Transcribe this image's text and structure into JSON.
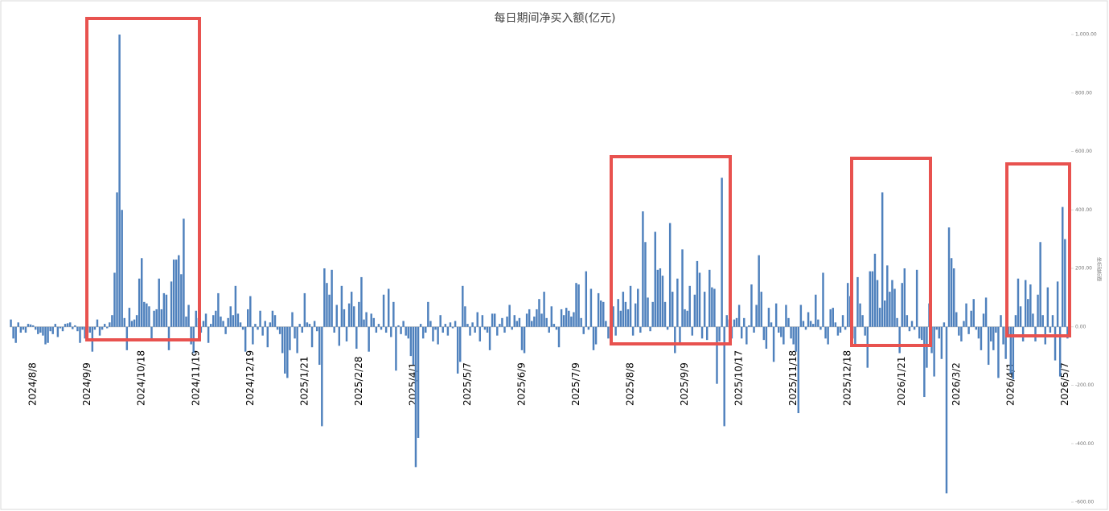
{
  "chart_data": {
    "type": "bar",
    "title": "每日期间净买入额(亿元)",
    "y_axis_label": "坐标轴标题",
    "color": "#4f81bd",
    "ylim": [
      -600,
      1000
    ],
    "yticks": [
      {
        "value": -600,
        "label": "-600.00"
      },
      {
        "value": -400,
        "label": "-400.00"
      },
      {
        "value": -200,
        "label": "-200.00"
      },
      {
        "value": 0,
        "label": "0.00"
      },
      {
        "value": 200,
        "label": "200.00"
      },
      {
        "value": 400,
        "label": "400.00"
      },
      {
        "value": 600,
        "label": "600.00"
      },
      {
        "value": 800,
        "label": "800.00"
      },
      {
        "value": 1000,
        "label": "1,000.00"
      }
    ],
    "categories": [
      null,
      null,
      null,
      null,
      null,
      null,
      null,
      null,
      null,
      "2024/8/8",
      null,
      null,
      null,
      null,
      null,
      null,
      null,
      null,
      null,
      null,
      null,
      null,
      null,
      null,
      null,
      null,
      null,
      null,
      null,
      null,
      null,
      "2024/9/9",
      null,
      null,
      null,
      null,
      null,
      null,
      null,
      null,
      null,
      null,
      null,
      null,
      null,
      null,
      null,
      null,
      null,
      null,
      null,
      null,
      null,
      "2024/10/18",
      null,
      null,
      null,
      null,
      null,
      null,
      null,
      null,
      null,
      null,
      null,
      null,
      null,
      null,
      null,
      null,
      null,
      null,
      null,
      null,
      null,
      "2024/11/19",
      null,
      null,
      null,
      null,
      null,
      null,
      null,
      null,
      null,
      null,
      null,
      null,
      null,
      null,
      null,
      null,
      null,
      null,
      null,
      null,
      null,
      "2024/12/19",
      null,
      null,
      null,
      null,
      null,
      null,
      null,
      null,
      null,
      null,
      null,
      null,
      null,
      null,
      null,
      null,
      null,
      null,
      null,
      null,
      null,
      "2025/1/21",
      null,
      null,
      null,
      null,
      null,
      null,
      null,
      null,
      null,
      null,
      null,
      null,
      null,
      null,
      null,
      null,
      null,
      null,
      null,
      null,
      null,
      "2025/2/28",
      null,
      null,
      null,
      null,
      null,
      null,
      null,
      null,
      null,
      null,
      null,
      null,
      null,
      null,
      null,
      null,
      null,
      null,
      null,
      null,
      null,
      "2025/4/1",
      null,
      null,
      null,
      null,
      null,
      null,
      null,
      null,
      null,
      null,
      null,
      null,
      null,
      null,
      null,
      null,
      null,
      null,
      null,
      null,
      null,
      "2025/5/7",
      null,
      null,
      null,
      null,
      null,
      null,
      null,
      null,
      null,
      null,
      null,
      null,
      null,
      null,
      null,
      null,
      null,
      null,
      null,
      null,
      null,
      "2025/6/9",
      null,
      null,
      null,
      null,
      null,
      null,
      null,
      null,
      null,
      null,
      null,
      null,
      null,
      null,
      null,
      null,
      null,
      null,
      null,
      null,
      null,
      "2025/7/9",
      null,
      null,
      null,
      null,
      null,
      null,
      null,
      null,
      null,
      null,
      null,
      null,
      null,
      null,
      null,
      null,
      null,
      null,
      null,
      null,
      null,
      "2025/8/8",
      null,
      null,
      null,
      null,
      null,
      null,
      null,
      null,
      null,
      null,
      null,
      null,
      null,
      null,
      null,
      null,
      null,
      null,
      null,
      null,
      null,
      "2025/9/9",
      null,
      null,
      null,
      null,
      null,
      null,
      null,
      null,
      null,
      null,
      null,
      null,
      null,
      null,
      null,
      null,
      null,
      null,
      null,
      null,
      null,
      "2025/10/17",
      null,
      null,
      null,
      null,
      null,
      null,
      null,
      null,
      null,
      null,
      null,
      null,
      null,
      null,
      null,
      null,
      null,
      null,
      null,
      null,
      null,
      "2025/11/18",
      null,
      null,
      null,
      null,
      null,
      null,
      null,
      null,
      null,
      null,
      null,
      null,
      null,
      null,
      null,
      null,
      null,
      null,
      null,
      null,
      null,
      "2025/12/18",
      null,
      null,
      null,
      null,
      null,
      null,
      null,
      null,
      null,
      null,
      null,
      null,
      null,
      null,
      null,
      null,
      null,
      null,
      null,
      null,
      null,
      "2026/1/21",
      null,
      null,
      null,
      null,
      null,
      null,
      null,
      null,
      null,
      null,
      null,
      null,
      null,
      null,
      null,
      null,
      null,
      null,
      null,
      null,
      null,
      "2026/3/2",
      null,
      null,
      null,
      null,
      null,
      null,
      null,
      null,
      null,
      null,
      null,
      null,
      null,
      null,
      null,
      null,
      null,
      null,
      null,
      null,
      null,
      "2026/4/1",
      null,
      null,
      null,
      null,
      null,
      null,
      null,
      null,
      null,
      null,
      null,
      null,
      null,
      null,
      null,
      null,
      null,
      null,
      null,
      null,
      null,
      "2026/5/7",
      null,
      null
    ],
    "values": [
      25,
      -40,
      -55,
      15,
      -20,
      -10,
      -20,
      10,
      8,
      5,
      -10,
      -25,
      -20,
      -30,
      -60,
      -55,
      -15,
      -25,
      10,
      -35,
      -5,
      -15,
      10,
      12,
      15,
      -8,
      5,
      -15,
      -55,
      -10,
      -40,
      -15,
      -20,
      -85,
      -10,
      25,
      -30,
      -10,
      10,
      -5,
      15,
      40,
      185,
      460,
      1000,
      400,
      30,
      -80,
      65,
      20,
      25,
      40,
      165,
      235,
      85,
      80,
      70,
      -40,
      55,
      60,
      165,
      60,
      115,
      110,
      -80,
      155,
      230,
      230,
      245,
      180,
      370,
      35,
      75,
      -60,
      -90,
      55,
      30,
      -20,
      20,
      45,
      -55,
      10,
      40,
      55,
      115,
      35,
      20,
      -25,
      30,
      70,
      40,
      140,
      45,
      15,
      -10,
      -85,
      60,
      105,
      -60,
      10,
      -10,
      55,
      -30,
      20,
      -70,
      15,
      55,
      40,
      -10,
      -25,
      -90,
      -160,
      -175,
      -80,
      50,
      -40,
      -90,
      10,
      -20,
      115,
      15,
      10,
      -70,
      20,
      -15,
      -130,
      -340,
      200,
      150,
      110,
      195,
      -20,
      75,
      -65,
      140,
      60,
      -50,
      80,
      120,
      70,
      -75,
      85,
      170,
      25,
      50,
      -85,
      45,
      30,
      -20,
      10,
      -10,
      110,
      -20,
      130,
      -35,
      85,
      -150,
      5,
      -25,
      20,
      -30,
      -40,
      -100,
      -130,
      -480,
      -380,
      10,
      -40,
      -20,
      85,
      20,
      -50,
      -10,
      -60,
      40,
      -20,
      10,
      -30,
      15,
      -5,
      20,
      -160,
      -120,
      140,
      70,
      10,
      -30,
      15,
      -20,
      50,
      -50,
      40,
      -10,
      -20,
      -80,
      45,
      45,
      -30,
      10,
      30,
      -20,
      35,
      75,
      -10,
      40,
      20,
      30,
      -80,
      -90,
      45,
      60,
      20,
      35,
      60,
      95,
      45,
      120,
      30,
      -20,
      70,
      10,
      -10,
      -70,
      60,
      40,
      65,
      55,
      35,
      50,
      150,
      145,
      30,
      -25,
      190,
      -10,
      130,
      -80,
      -60,
      115,
      90,
      85,
      20,
      -40,
      165,
      70,
      -30,
      95,
      55,
      120,
      85,
      60,
      140,
      -30,
      80,
      130,
      -20,
      395,
      290,
      100,
      -15,
      85,
      325,
      195,
      200,
      175,
      85,
      -10,
      355,
      120,
      -90,
      165,
      -60,
      265,
      60,
      55,
      140,
      -30,
      110,
      225,
      185,
      -40,
      120,
      -45,
      195,
      135,
      130,
      -195,
      -50,
      510,
      -340,
      40,
      25,
      -40,
      25,
      30,
      75,
      -40,
      30,
      -60,
      5,
      145,
      -20,
      75,
      245,
      120,
      -45,
      -75,
      65,
      15,
      -120,
      80,
      -20,
      -35,
      -60,
      75,
      30,
      -40,
      -60,
      -85,
      -295,
      75,
      20,
      -10,
      50,
      20,
      10,
      110,
      25,
      -10,
      185,
      -40,
      -60,
      60,
      65,
      15,
      -30,
      -20,
      40,
      -10,
      150,
      105,
      -40,
      -60,
      170,
      80,
      40,
      -30,
      -140,
      190,
      190,
      250,
      160,
      65,
      460,
      90,
      210,
      120,
      160,
      130,
      30,
      -90,
      150,
      200,
      40,
      -15,
      20,
      -10,
      195,
      -40,
      -45,
      -240,
      -140,
      80,
      -90,
      -170,
      -10,
      -40,
      -110,
      15,
      -570,
      340,
      235,
      200,
      50,
      -30,
      -50,
      20,
      80,
      -25,
      55,
      95,
      -10,
      -40,
      -80,
      45,
      100,
      -130,
      -50,
      -80,
      -20,
      -175,
      40,
      -60,
      -110,
      -30,
      -160,
      -180,
      40,
      165,
      70,
      -50,
      160,
      95,
      145,
      45,
      -50,
      110,
      290,
      40,
      -60,
      135,
      -20,
      40,
      -115,
      155,
      -170,
      410,
      300,
      -40,
      10
    ]
  }
}
